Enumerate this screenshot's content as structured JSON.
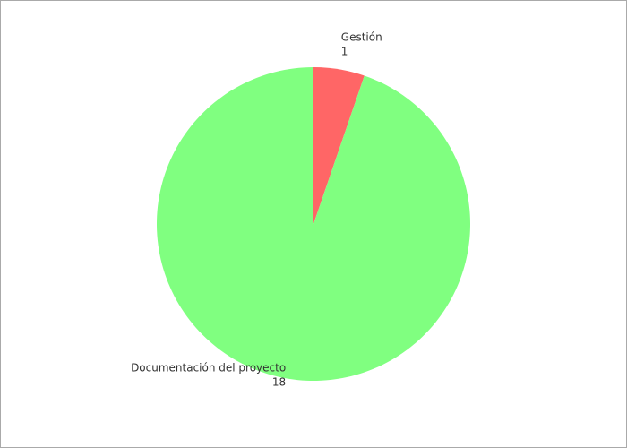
{
  "chart_data": {
    "type": "pie",
    "title": "",
    "start_angle_deg": 0,
    "direction": "clockwise",
    "slices": [
      {
        "name": "Gestión",
        "value": 1,
        "color": "#ff6666"
      },
      {
        "name": "Documentación del proyecto",
        "value": 18,
        "color": "#80ff80"
      }
    ]
  }
}
